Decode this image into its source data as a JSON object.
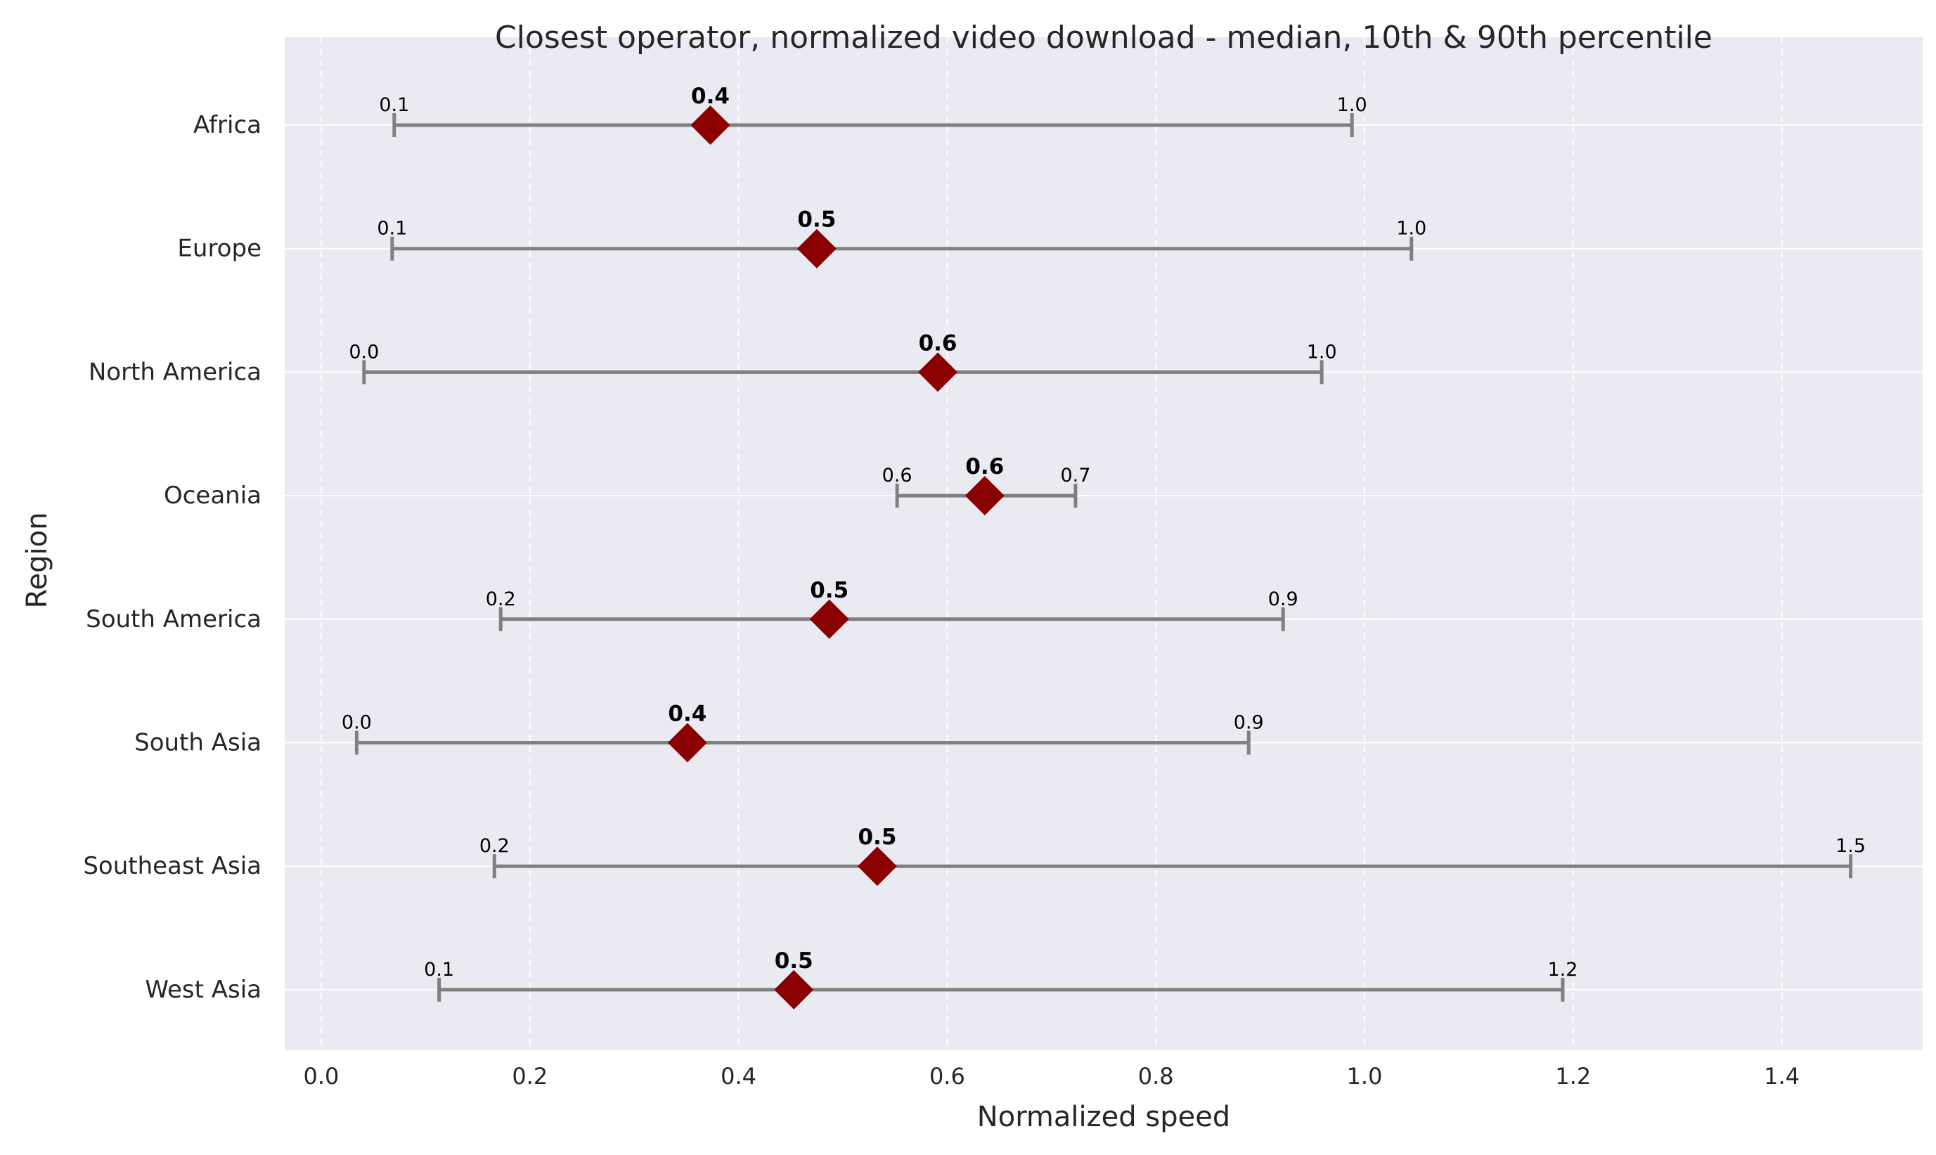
{
  "chart_data": {
    "type": "range-dot",
    "title": "Closest operator, normalized video download - median, 10th & 90th percentile",
    "xlabel": "Normalized speed",
    "ylabel": "Region",
    "xlim": [
      -0.035,
      1.535
    ],
    "xticks": [
      0.0,
      0.2,
      0.4,
      0.6,
      0.8,
      1.0,
      1.2,
      1.4
    ],
    "xtick_labels": [
      "0.0",
      "0.2",
      "0.4",
      "0.6",
      "0.8",
      "1.0",
      "1.2",
      "1.4"
    ],
    "grid": true,
    "categories": [
      "Africa",
      "Europe",
      "North America",
      "Oceania",
      "South America",
      "South Asia",
      "Southeast Asia",
      "West Asia"
    ],
    "p10": [
      0.07,
      0.068,
      0.041,
      0.552,
      0.172,
      0.034,
      0.166,
      0.113
    ],
    "median": [
      0.373,
      0.475,
      0.591,
      0.636,
      0.487,
      0.351,
      0.533,
      0.453
    ],
    "p90": [
      0.988,
      1.045,
      0.959,
      0.723,
      0.922,
      0.889,
      1.466,
      1.19
    ],
    "p10_labels": [
      "0.1",
      "0.1",
      "0.0",
      "0.6",
      "0.2",
      "0.0",
      "0.2",
      "0.1"
    ],
    "median_labels": [
      "0.4",
      "0.5",
      "0.6",
      "0.6",
      "0.5",
      "0.4",
      "0.5",
      "0.5"
    ],
    "p90_labels": [
      "1.0",
      "1.0",
      "1.0",
      "0.7",
      "0.9",
      "0.9",
      "1.5",
      "1.2"
    ],
    "colors": {
      "plot_background": "#eaeaf2",
      "grid": "#ffffff",
      "range_line": "#808080",
      "median_marker": "#8b0000",
      "text": "#262626",
      "value_label": "#000000"
    }
  }
}
